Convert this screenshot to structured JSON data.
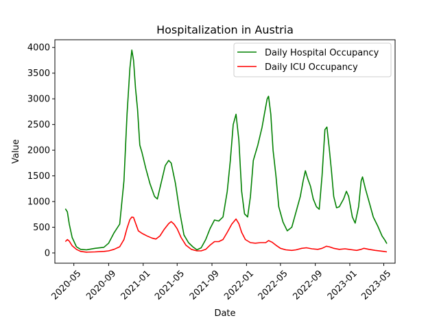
{
  "chart_data": {
    "type": "line",
    "title": "Hospitalization in Austria",
    "xlabel": "Date",
    "ylabel": "Value",
    "ylim": [
      -200,
      4150
    ],
    "xlim": [
      "2020-02-24",
      "2023-06-10"
    ],
    "grid": false,
    "legend_position": "top-right",
    "x_ticks": [
      "2020-05",
      "2020-09",
      "2021-01",
      "2021-05",
      "2021-09",
      "2022-01",
      "2022-05",
      "2022-09",
      "2023-01",
      "2023-05"
    ],
    "y_ticks": [
      0,
      500,
      1000,
      1500,
      2000,
      2500,
      3000,
      3500,
      4000
    ],
    "series": [
      {
        "name": "Daily Hospital Occupancy",
        "color": "#008000",
        "points": [
          [
            "2020-04-01",
            860
          ],
          [
            "2020-04-08",
            800
          ],
          [
            "2020-04-15",
            560
          ],
          [
            "2020-04-25",
            300
          ],
          [
            "2020-05-10",
            120
          ],
          [
            "2020-05-25",
            70
          ],
          [
            "2020-06-15",
            60
          ],
          [
            "2020-07-15",
            90
          ],
          [
            "2020-08-15",
            110
          ],
          [
            "2020-09-01",
            190
          ],
          [
            "2020-09-20",
            390
          ],
          [
            "2020-10-10",
            560
          ],
          [
            "2020-10-25",
            1400
          ],
          [
            "2020-11-05",
            2700
          ],
          [
            "2020-11-15",
            3600
          ],
          [
            "2020-11-22",
            3950
          ],
          [
            "2020-11-28",
            3750
          ],
          [
            "2020-12-05",
            3200
          ],
          [
            "2020-12-12",
            2800
          ],
          [
            "2020-12-20",
            2100
          ],
          [
            "2020-12-28",
            1950
          ],
          [
            "2021-01-10",
            1650
          ],
          [
            "2021-01-25",
            1350
          ],
          [
            "2021-02-10",
            1100
          ],
          [
            "2021-02-20",
            1050
          ],
          [
            "2021-03-05",
            1350
          ],
          [
            "2021-03-20",
            1700
          ],
          [
            "2021-04-01",
            1800
          ],
          [
            "2021-04-10",
            1750
          ],
          [
            "2021-04-25",
            1350
          ],
          [
            "2021-05-10",
            800
          ],
          [
            "2021-05-25",
            350
          ],
          [
            "2021-06-10",
            200
          ],
          [
            "2021-06-25",
            120
          ],
          [
            "2021-07-10",
            60
          ],
          [
            "2021-07-25",
            100
          ],
          [
            "2021-08-10",
            260
          ],
          [
            "2021-08-25",
            470
          ],
          [
            "2021-09-10",
            640
          ],
          [
            "2021-09-25",
            620
          ],
          [
            "2021-10-10",
            700
          ],
          [
            "2021-10-25",
            1200
          ],
          [
            "2021-11-05",
            1800
          ],
          [
            "2021-11-15",
            2500
          ],
          [
            "2021-11-25",
            2700
          ],
          [
            "2021-12-05",
            2200
          ],
          [
            "2021-12-15",
            1200
          ],
          [
            "2021-12-25",
            760
          ],
          [
            "2022-01-05",
            700
          ],
          [
            "2022-01-15",
            1100
          ],
          [
            "2022-01-25",
            1800
          ],
          [
            "2022-02-10",
            2100
          ],
          [
            "2022-02-25",
            2450
          ],
          [
            "2022-03-05",
            2700
          ],
          [
            "2022-03-15",
            3000
          ],
          [
            "2022-03-20",
            3050
          ],
          [
            "2022-03-28",
            2700
          ],
          [
            "2022-04-05",
            2000
          ],
          [
            "2022-04-15",
            1500
          ],
          [
            "2022-04-25",
            900
          ],
          [
            "2022-05-10",
            600
          ],
          [
            "2022-05-25",
            430
          ],
          [
            "2022-06-10",
            500
          ],
          [
            "2022-06-25",
            800
          ],
          [
            "2022-07-10",
            1100
          ],
          [
            "2022-07-20",
            1400
          ],
          [
            "2022-07-28",
            1600
          ],
          [
            "2022-08-05",
            1450
          ],
          [
            "2022-08-15",
            1300
          ],
          [
            "2022-08-25",
            1050
          ],
          [
            "2022-09-05",
            900
          ],
          [
            "2022-09-15",
            850
          ],
          [
            "2022-09-25",
            1500
          ],
          [
            "2022-10-05",
            2400
          ],
          [
            "2022-10-12",
            2450
          ],
          [
            "2022-10-20",
            2050
          ],
          [
            "2022-10-28",
            1600
          ],
          [
            "2022-11-05",
            1100
          ],
          [
            "2022-11-15",
            880
          ],
          [
            "2022-11-25",
            900
          ],
          [
            "2022-12-10",
            1050
          ],
          [
            "2022-12-20",
            1200
          ],
          [
            "2022-12-28",
            1100
          ],
          [
            "2023-01-10",
            700
          ],
          [
            "2023-01-20",
            580
          ],
          [
            "2023-02-01",
            900
          ],
          [
            "2023-02-10",
            1400
          ],
          [
            "2023-02-15",
            1480
          ],
          [
            "2023-02-25",
            1250
          ],
          [
            "2023-03-10",
            1000
          ],
          [
            "2023-03-25",
            700
          ],
          [
            "2023-04-10",
            520
          ],
          [
            "2023-04-25",
            330
          ],
          [
            "2023-05-05",
            250
          ],
          [
            "2023-05-12",
            180
          ]
        ]
      },
      {
        "name": "Daily ICU Occupancy",
        "color": "#ff0000",
        "points": [
          [
            "2020-04-01",
            220
          ],
          [
            "2020-04-08",
            260
          ],
          [
            "2020-04-15",
            230
          ],
          [
            "2020-04-25",
            140
          ],
          [
            "2020-05-10",
            70
          ],
          [
            "2020-05-25",
            30
          ],
          [
            "2020-06-15",
            15
          ],
          [
            "2020-07-15",
            20
          ],
          [
            "2020-08-15",
            30
          ],
          [
            "2020-09-01",
            40
          ],
          [
            "2020-09-20",
            70
          ],
          [
            "2020-10-10",
            120
          ],
          [
            "2020-10-25",
            260
          ],
          [
            "2020-11-05",
            480
          ],
          [
            "2020-11-15",
            650
          ],
          [
            "2020-11-22",
            700
          ],
          [
            "2020-11-28",
            690
          ],
          [
            "2020-12-05",
            580
          ],
          [
            "2020-12-15",
            430
          ],
          [
            "2020-12-28",
            380
          ],
          [
            "2021-01-15",
            330
          ],
          [
            "2021-02-01",
            290
          ],
          [
            "2021-02-15",
            270
          ],
          [
            "2021-03-01",
            330
          ],
          [
            "2021-03-15",
            450
          ],
          [
            "2021-04-01",
            570
          ],
          [
            "2021-04-10",
            610
          ],
          [
            "2021-04-20",
            560
          ],
          [
            "2021-05-01",
            470
          ],
          [
            "2021-05-15",
            300
          ],
          [
            "2021-06-01",
            150
          ],
          [
            "2021-06-20",
            70
          ],
          [
            "2021-07-10",
            40
          ],
          [
            "2021-07-25",
            40
          ],
          [
            "2021-08-10",
            70
          ],
          [
            "2021-08-25",
            150
          ],
          [
            "2021-09-10",
            220
          ],
          [
            "2021-09-25",
            220
          ],
          [
            "2021-10-10",
            260
          ],
          [
            "2021-10-25",
            400
          ],
          [
            "2021-11-10",
            560
          ],
          [
            "2021-11-25",
            660
          ],
          [
            "2021-12-05",
            570
          ],
          [
            "2021-12-15",
            400
          ],
          [
            "2021-12-28",
            260
          ],
          [
            "2022-01-15",
            200
          ],
          [
            "2022-02-01",
            190
          ],
          [
            "2022-02-20",
            200
          ],
          [
            "2022-03-10",
            200
          ],
          [
            "2022-03-20",
            240
          ],
          [
            "2022-04-01",
            210
          ],
          [
            "2022-04-15",
            150
          ],
          [
            "2022-05-01",
            90
          ],
          [
            "2022-05-20",
            60
          ],
          [
            "2022-06-10",
            50
          ],
          [
            "2022-06-25",
            60
          ],
          [
            "2022-07-15",
            90
          ],
          [
            "2022-08-01",
            100
          ],
          [
            "2022-08-20",
            80
          ],
          [
            "2022-09-10",
            70
          ],
          [
            "2022-09-25",
            90
          ],
          [
            "2022-10-10",
            130
          ],
          [
            "2022-10-20",
            120
          ],
          [
            "2022-11-05",
            90
          ],
          [
            "2022-11-25",
            70
          ],
          [
            "2022-12-15",
            80
          ],
          [
            "2023-01-10",
            60
          ],
          [
            "2023-01-25",
            50
          ],
          [
            "2023-02-10",
            70
          ],
          [
            "2023-02-20",
            90
          ],
          [
            "2023-03-10",
            70
          ],
          [
            "2023-04-01",
            50
          ],
          [
            "2023-05-01",
            30
          ],
          [
            "2023-05-12",
            20
          ]
        ]
      }
    ]
  }
}
